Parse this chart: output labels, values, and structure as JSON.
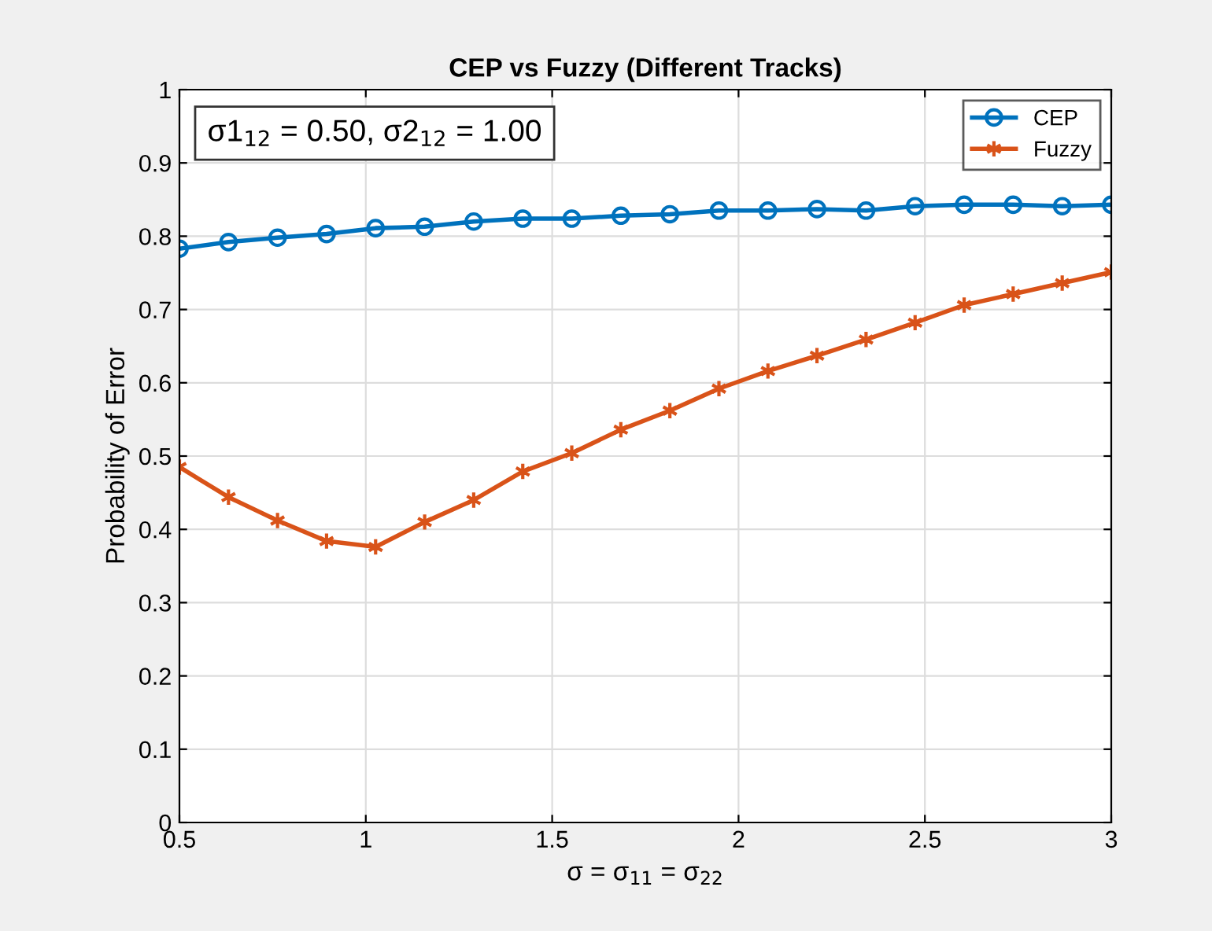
{
  "chart_data": {
    "type": "line",
    "title": "CEP vs Fuzzy (Different Tracks)",
    "xlabel": "σ = σ$_{11}$ = σ$_{22}$",
    "ylabel": "Probability of Error",
    "annotations": [
      "σ1$_{12}$ = 0.50, σ2$_{12}$ = 1.00"
    ],
    "x": [
      0.5,
      0.6316,
      0.7632,
      0.8947,
      1.0263,
      1.1579,
      1.2895,
      1.4211,
      1.5526,
      1.6842,
      1.8158,
      1.9474,
      2.0789,
      2.2105,
      2.3421,
      2.4737,
      2.6053,
      2.7368,
      2.8684,
      3.0
    ],
    "series": [
      {
        "name": "CEP",
        "color": "#0072bd",
        "marker": "circle",
        "values": [
          0.783,
          0.792,
          0.798,
          0.803,
          0.811,
          0.813,
          0.82,
          0.824,
          0.824,
          0.828,
          0.83,
          0.835,
          0.835,
          0.837,
          0.835,
          0.841,
          0.843,
          0.843,
          0.841,
          0.843
        ]
      },
      {
        "name": "Fuzzy",
        "color": "#d95319",
        "marker": "cross",
        "values": [
          0.485,
          0.444,
          0.412,
          0.384,
          0.376,
          0.41,
          0.44,
          0.479,
          0.504,
          0.536,
          0.562,
          0.592,
          0.616,
          0.637,
          0.659,
          0.682,
          0.706,
          0.721,
          0.736,
          0.751
        ]
      }
    ],
    "xlim": [
      0.5,
      3
    ],
    "xticks": [
      0.5,
      1,
      1.5,
      2,
      2.5,
      3
    ],
    "ylim": [
      0,
      1
    ],
    "yticks": [
      0,
      0.1,
      0.2,
      0.3,
      0.4,
      0.5,
      0.6,
      0.7,
      0.8,
      0.9,
      1
    ],
    "grid": true,
    "legend": "top right",
    "line_style": "solid"
  }
}
